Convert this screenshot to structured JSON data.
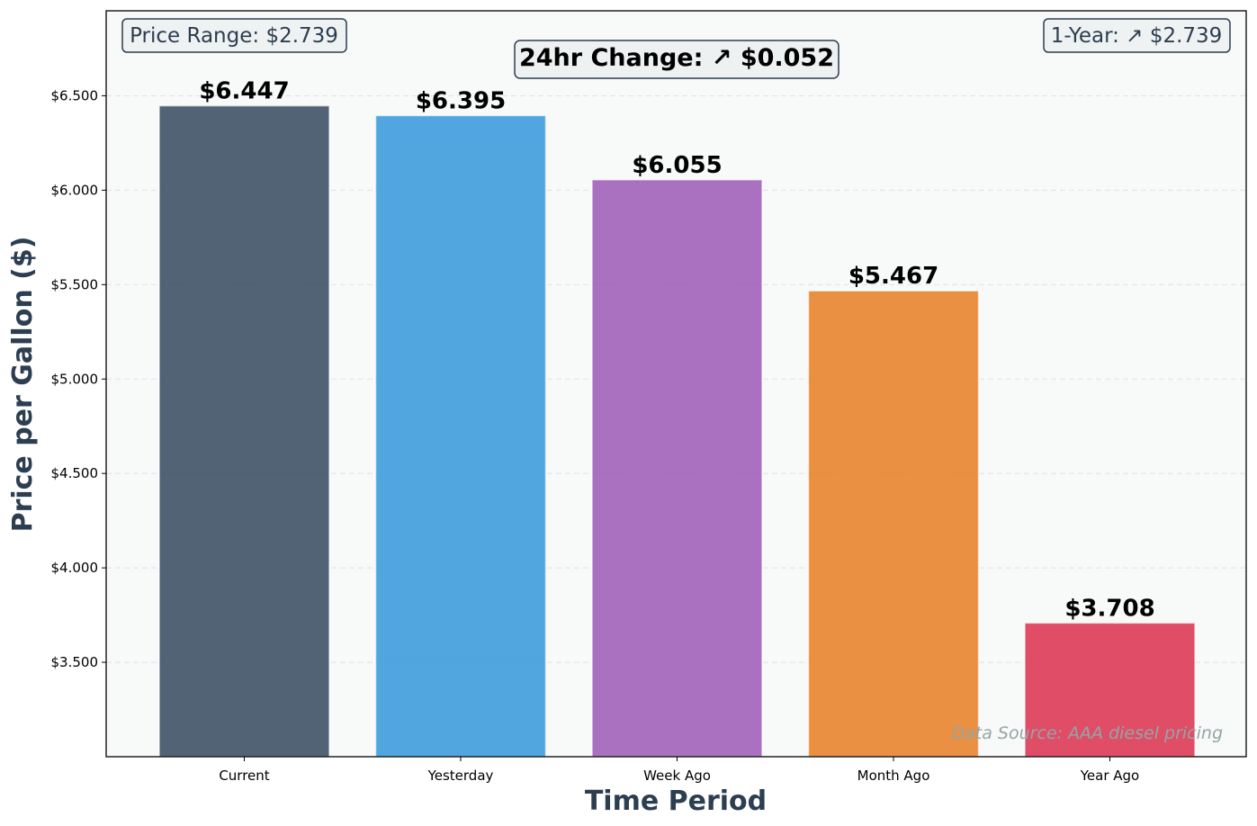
{
  "chart_data": {
    "type": "bar",
    "categories": [
      "Current",
      "Yesterday",
      "Week Ago",
      "Month Ago",
      "Year Ago"
    ],
    "values": [
      6.447,
      6.395,
      6.055,
      5.467,
      3.708
    ],
    "value_labels": [
      "$6.447",
      "$6.395",
      "$6.055",
      "$5.467",
      "$3.708"
    ],
    "colors": [
      "#34495e",
      "#3498db",
      "#9b59b6",
      "#e67e22",
      "#dc2f4d"
    ],
    "xlabel": "Time Period",
    "ylabel": "Price per Gallon ($)",
    "ylim": [
      3.0,
      6.95
    ],
    "yticks": [
      3.5,
      4.0,
      4.5,
      5.0,
      5.5,
      6.0,
      6.5
    ],
    "ytick_labels": [
      "$3.500",
      "$4.000",
      "$4.500",
      "$5.000",
      "$5.500",
      "$6.000",
      "$6.500"
    ],
    "grid": "horizontal dashed",
    "annotations": {
      "price_range": "Price Range: $2.739",
      "change_24hr": "24hr Change: ↗ $0.052",
      "one_year": "1-Year: ↗ $2.739",
      "source": "Data Source: AAA diesel pricing"
    }
  }
}
